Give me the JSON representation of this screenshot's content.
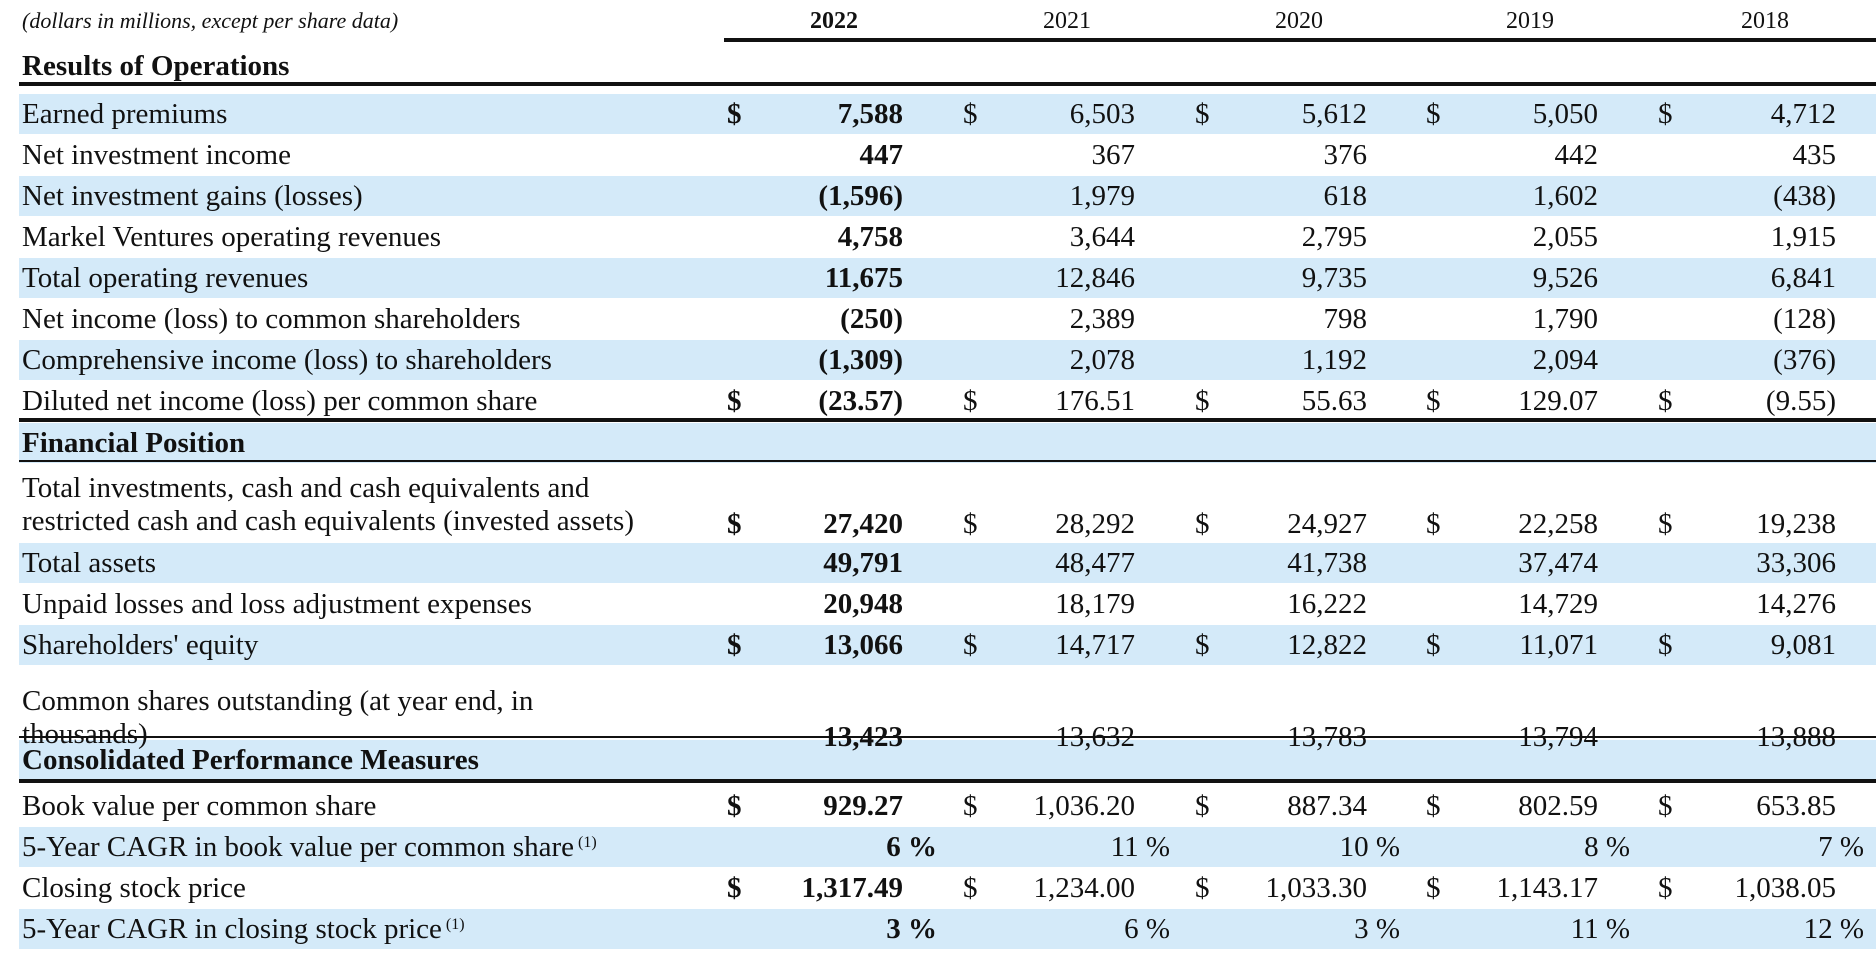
{
  "unit_note": "(dollars in millions, except per share data)",
  "years": [
    "2022",
    "2021",
    "2020",
    "2019",
    "2018"
  ],
  "sections": {
    "results": "Results of Operations",
    "position": "Financial Position",
    "performance": "Consolidated Performance Measures"
  },
  "rows": [
    {
      "label": "Earned premiums",
      "dollar": "$",
      "values": [
        "7,588",
        "6,503",
        "5,612",
        "5,050",
        "4,712"
      ]
    },
    {
      "label": "Net investment income",
      "dollar": "",
      "values": [
        "447",
        "367",
        "376",
        "442",
        "435"
      ]
    },
    {
      "label": "Net investment gains (losses)",
      "dollar": "",
      "values": [
        "(1,596)",
        "1,979",
        "618",
        "1,602",
        "(438)"
      ]
    },
    {
      "label": "Markel Ventures operating revenues",
      "dollar": "",
      "values": [
        "4,758",
        "3,644",
        "2,795",
        "2,055",
        "1,915"
      ]
    },
    {
      "label": "Total operating revenues",
      "dollar": "",
      "values": [
        "11,675",
        "12,846",
        "9,735",
        "9,526",
        "6,841"
      ]
    },
    {
      "label": "Net income (loss) to common shareholders",
      "dollar": "",
      "values": [
        "(250)",
        "2,389",
        "798",
        "1,790",
        "(128)"
      ]
    },
    {
      "label": "Comprehensive income (loss) to shareholders",
      "dollar": "",
      "values": [
        "(1,309)",
        "2,078",
        "1,192",
        "2,094",
        "(376)"
      ]
    },
    {
      "label": "Diluted net income (loss) per common share",
      "dollar": "$",
      "values": [
        "(23.57)",
        "176.51",
        "55.63",
        "129.07",
        "(9.55)"
      ]
    },
    {
      "label_line1": "Total investments, cash and cash equivalents and",
      "label_line2": "restricted cash and cash equivalents (invested assets)",
      "dollar": "$",
      "values": [
        "27,420",
        "28,292",
        "24,927",
        "22,258",
        "19,238"
      ]
    },
    {
      "label": "Total assets",
      "dollar": "",
      "values": [
        "49,791",
        "48,477",
        "41,738",
        "37,474",
        "33,306"
      ]
    },
    {
      "label": "Unpaid losses and loss adjustment expenses",
      "dollar": "",
      "values": [
        "20,948",
        "18,179",
        "16,222",
        "14,729",
        "14,276"
      ]
    },
    {
      "label": "Shareholders' equity",
      "dollar": "$",
      "values": [
        "13,066",
        "14,717",
        "12,822",
        "11,071",
        "9,081"
      ]
    },
    {
      "label_line1": "Common shares outstanding (at year end, in",
      "label_line2": "thousands)",
      "dollar": "",
      "values": [
        "13,423",
        "13,632",
        "13,783",
        "13,794",
        "13,888"
      ]
    },
    {
      "label": "Book value per common share",
      "dollar": "$",
      "values": [
        "929.27",
        "1,036.20",
        "887.34",
        "802.59",
        "653.85"
      ]
    },
    {
      "label": "5-Year CAGR in book value per common share",
      "footnote": "(1)",
      "dollar": "",
      "values": [
        "6 %",
        "11 %",
        "10 %",
        "8 %",
        "7 %"
      ]
    },
    {
      "label": "Closing stock price",
      "dollar": "$",
      "values": [
        "1,317.49",
        "1,234.00",
        "1,033.30",
        "1,143.17",
        "1,038.05"
      ]
    },
    {
      "label": "5-Year CAGR in closing stock price",
      "footnote": "(1)",
      "dollar": "",
      "values": [
        "3 %",
        "6 %",
        "3 %",
        "11 %",
        "12 %"
      ]
    }
  ]
}
